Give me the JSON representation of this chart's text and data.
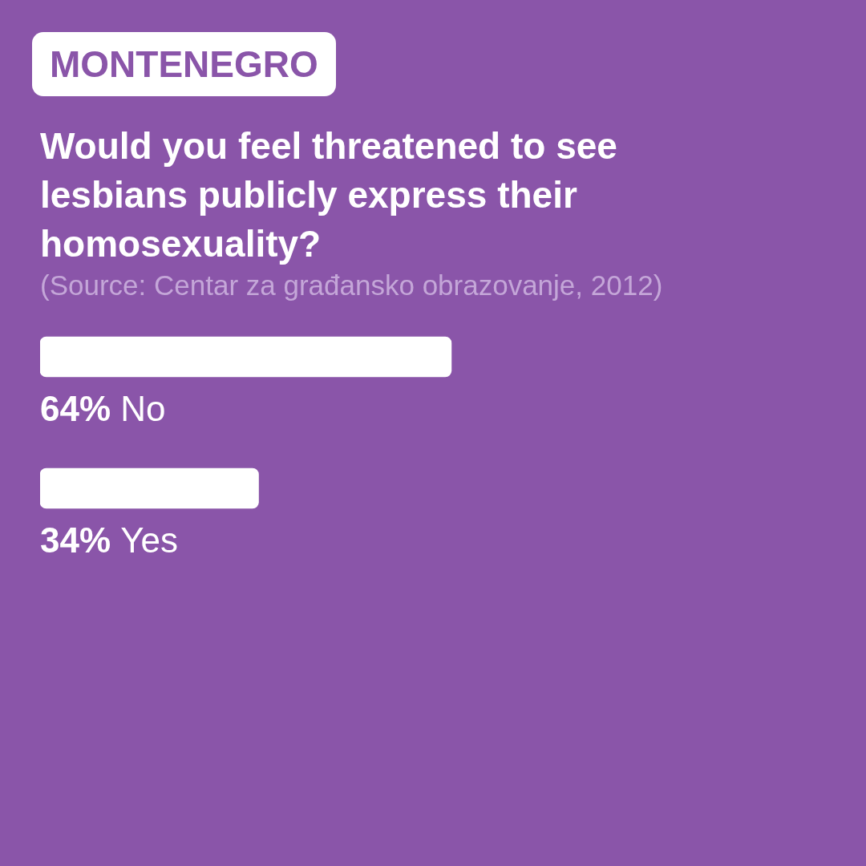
{
  "chart_data": {
    "type": "bar",
    "orientation": "horizontal",
    "title": "Would you feel threatened to see lesbians publicly express their homosexuality?",
    "annotations": [
      "MONTENEGRO",
      "(Source: Centar za građansko obrazovanje, 2012)"
    ],
    "categories": [
      "No",
      "Yes"
    ],
    "series": [
      {
        "color": "#ffffff",
        "values": [
          64,
          34
        ],
        "value_labels": [
          "64%",
          "34%"
        ]
      }
    ],
    "tick_labels": false,
    "legend": false
  }
}
